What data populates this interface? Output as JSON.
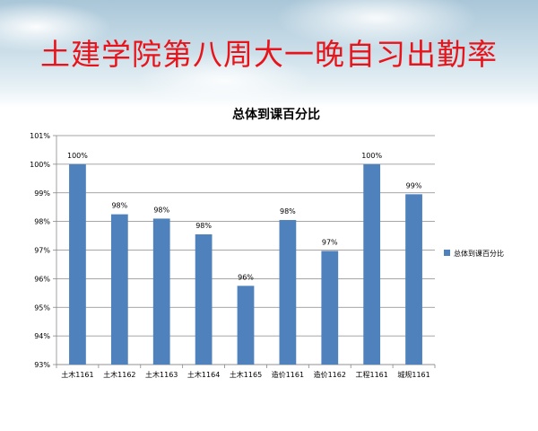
{
  "headline": "土建学院第八周大一晚自习出勤率",
  "chart_data": {
    "type": "bar",
    "title": "总体到课百分比",
    "categories": [
      "土木1161",
      "土木1162",
      "土木1163",
      "土木1164",
      "土木1165",
      "造价1161",
      "造价1162",
      "工程1161",
      "城规1161"
    ],
    "series": [
      {
        "name": "总体到课百分比",
        "values": [
          100,
          98.25,
          98.1,
          97.55,
          95.75,
          98.05,
          96.97,
          100,
          98.95
        ],
        "labels": [
          "100%",
          "98%",
          "98%",
          "98%",
          "96%",
          "98%",
          "97%",
          "100%",
          "99%"
        ],
        "color": "#4f81bd"
      }
    ],
    "ylim": [
      93,
      101
    ],
    "yticks": [
      "93%",
      "94%",
      "95%",
      "96%",
      "97%",
      "98%",
      "99%",
      "100%",
      "101%"
    ],
    "grid": true,
    "legend": "right"
  }
}
